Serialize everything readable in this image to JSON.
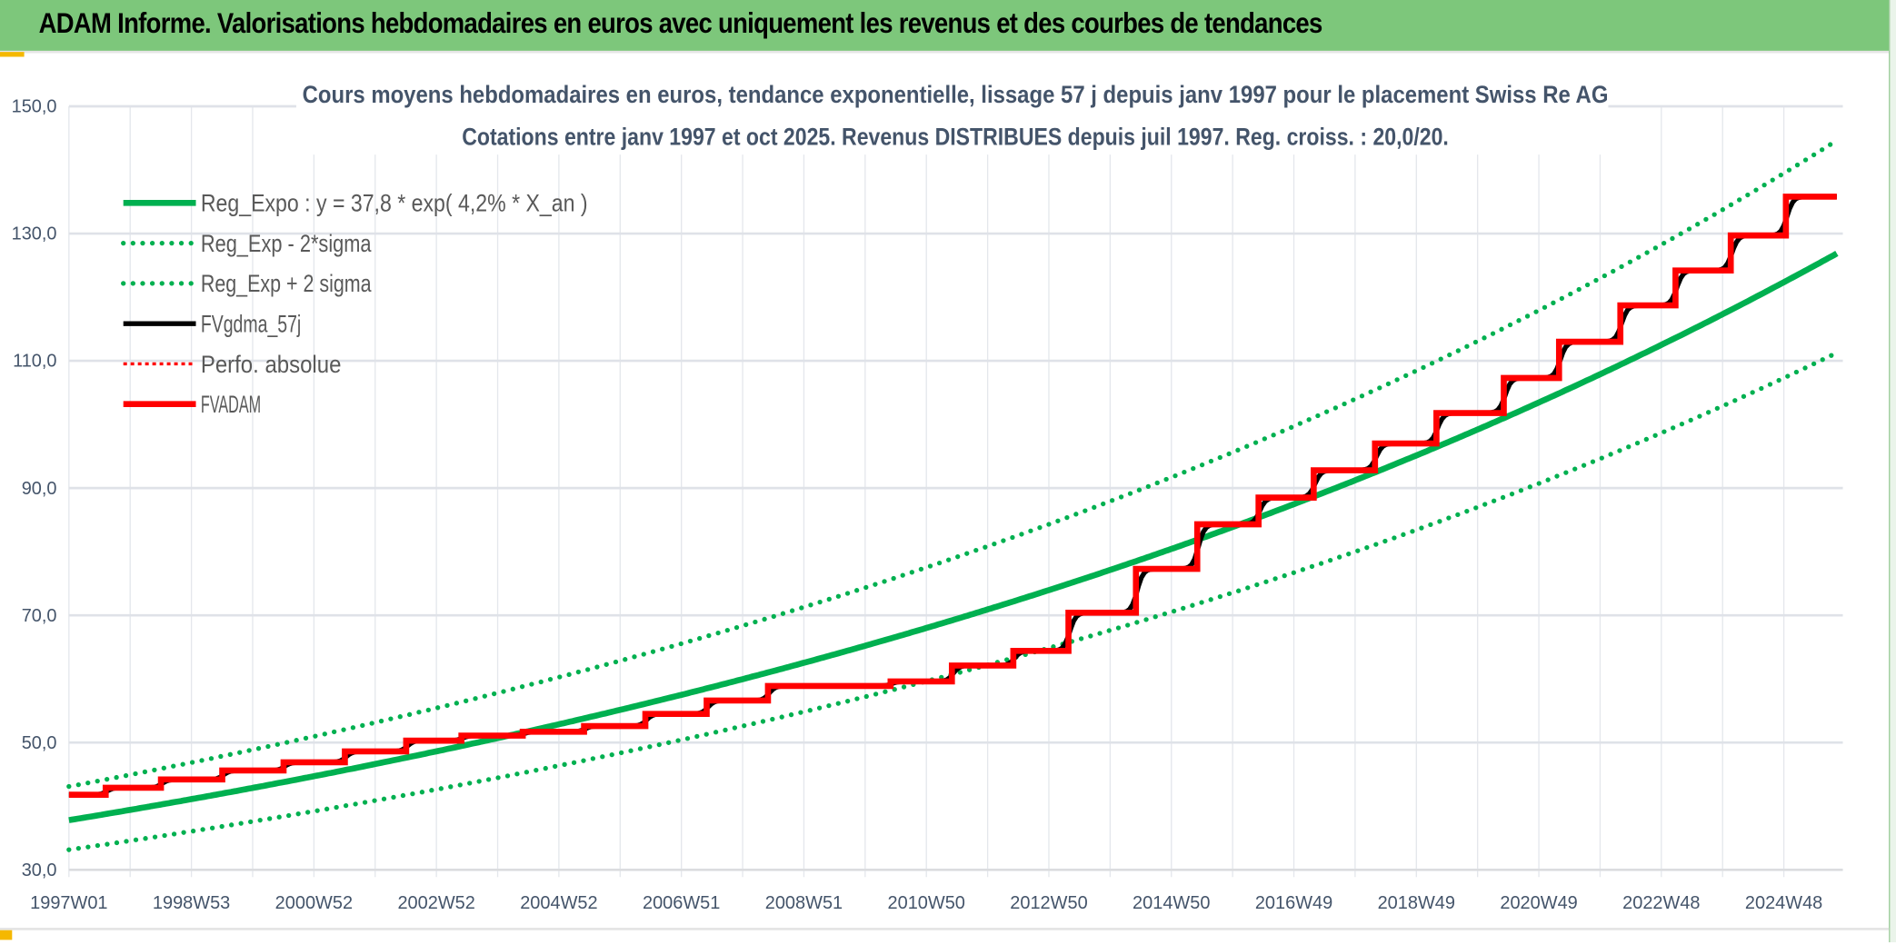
{
  "header": {
    "title": "ADAM Informe. Valorisations hebdomadaires en euros avec uniquement les revenus et des courbes de tendances"
  },
  "chart_data": {
    "type": "line",
    "title": "Cours moyens hebdomadaires en euros, tendance exponentielle, lissage 57 j depuis janv 1997 pour le placement Swiss Re AG",
    "subtitle": "Cotations entre janv 1997 et oct 2025. Revenus DISTRIBUES depuis juil 1997. Reg. croiss. : 20,0/20.",
    "xlabel": "",
    "ylabel": "",
    "x_range": [
      1997.0,
      2025.83
    ],
    "ylim": [
      30,
      150
    ],
    "y_ticks": [
      "30,0",
      "50,0",
      "70,0",
      "90,0",
      "110,0",
      "130,0",
      "150,0"
    ],
    "x_tick_labels": [
      "1997W01",
      "1998W53",
      "2000W52",
      "2002W52",
      "2004W52",
      "2006W51",
      "2008W51",
      "2010W50",
      "2012W50",
      "2014W50",
      "2016W49",
      "2018W49",
      "2020W49",
      "2022W48",
      "2024W48"
    ],
    "grid": true,
    "legend_placement": "top-left",
    "series": [
      {
        "name": "Reg_Expo : y = 37,8 * exp( 4,2% *  X_an )",
        "style": "solid",
        "color": "#00b050",
        "a": 37.8,
        "rate": 0.042
      },
      {
        "name": "Reg_Exp - 2*sigma",
        "style": "dotted",
        "color": "#00b050",
        "factor_of_trend": 0.877
      },
      {
        "name": "Reg_Exp + 2 sigma",
        "style": "dotted",
        "color": "#00b050",
        "factor_of_trend": 1.14
      },
      {
        "name": "FVgdma_57j",
        "style": "solid",
        "color": "#000000",
        "note_smoothing": "57 j"
      },
      {
        "name": "Perfo. absolue",
        "style": "dotted",
        "color": "#ff0000"
      },
      {
        "name": "FVADAM",
        "style": "step",
        "color": "#ff0000",
        "points": [
          [
            1997.0,
            41.8
          ],
          [
            1997.6,
            42.9
          ],
          [
            1998.5,
            44.2
          ],
          [
            1999.5,
            45.6
          ],
          [
            2000.5,
            46.9
          ],
          [
            2001.5,
            48.6
          ],
          [
            2002.5,
            50.3
          ],
          [
            2003.4,
            51.1
          ],
          [
            2004.4,
            51.7
          ],
          [
            2005.4,
            52.6
          ],
          [
            2006.4,
            54.5
          ],
          [
            2007.4,
            56.6
          ],
          [
            2008.4,
            58.9
          ],
          [
            2010.4,
            59.6
          ],
          [
            2011.4,
            62.1
          ],
          [
            2012.4,
            64.4
          ],
          [
            2013.3,
            70.4
          ],
          [
            2014.4,
            77.3
          ],
          [
            2015.4,
            84.3
          ],
          [
            2016.4,
            88.5
          ],
          [
            2017.3,
            92.8
          ],
          [
            2018.3,
            97.0
          ],
          [
            2019.3,
            101.8
          ],
          [
            2020.4,
            107.3
          ],
          [
            2021.3,
            113.0
          ],
          [
            2022.3,
            118.7
          ],
          [
            2023.2,
            124.2
          ],
          [
            2024.1,
            129.7
          ],
          [
            2025.0,
            135.8
          ]
        ]
      }
    ]
  }
}
